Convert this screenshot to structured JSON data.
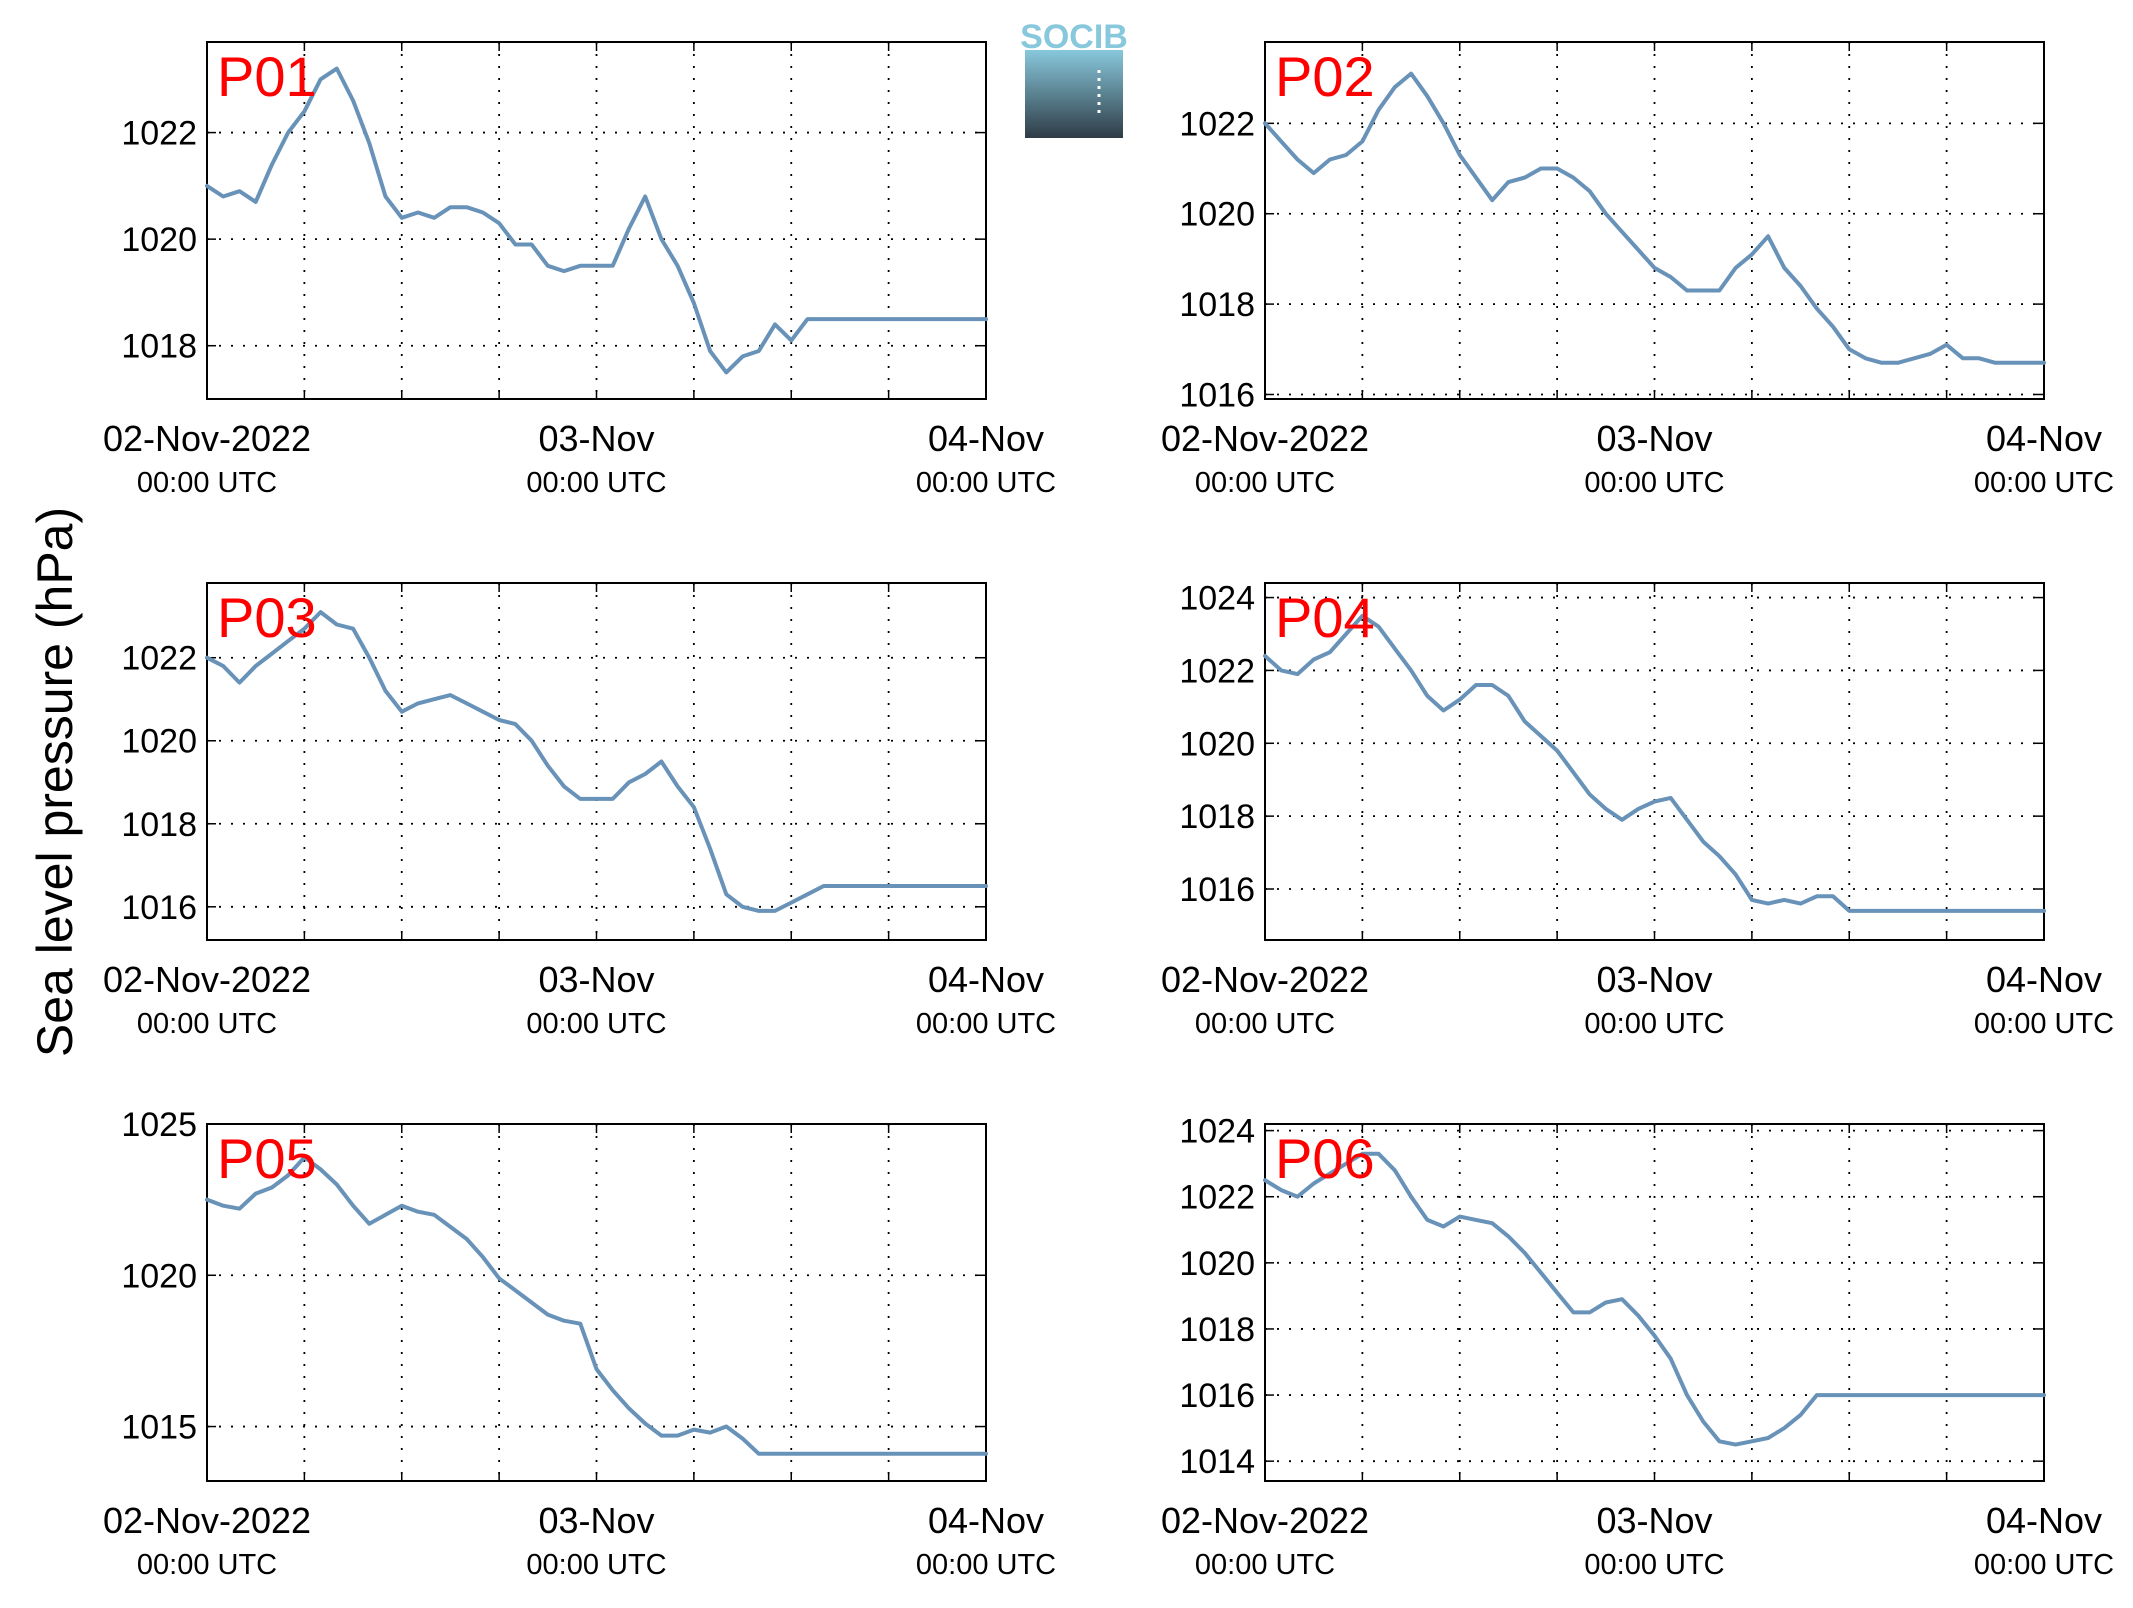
{
  "figure": {
    "ylabel": "Sea level pressure (hPa)",
    "logo_text": "SOCIB"
  },
  "style": {
    "line_color": "#6892b8",
    "panel_label_color": "#ff0000",
    "grid_color": "#000000",
    "logo_top_color": "#88c8dc",
    "logo_bottom_color": "#2e3c46"
  },
  "chart_data": [
    {
      "type": "line",
      "panel_label": "P01",
      "x_ticks": [
        {
          "x": 0,
          "date": "02-Nov-2022",
          "time": "00:00 UTC"
        },
        {
          "x": 24,
          "date": "03-Nov",
          "time": "00:00 UTC"
        },
        {
          "x": 48,
          "date": "04-Nov",
          "time": "00:00 UTC"
        }
      ],
      "xlim": [
        0,
        48
      ],
      "ylim": [
        1017,
        1023.7
      ],
      "yticks": [
        1018,
        1020,
        1022
      ],
      "x": [
        0,
        1,
        2,
        3,
        4,
        5,
        6,
        7,
        8,
        9,
        10,
        11,
        12,
        13,
        14,
        15,
        16,
        17,
        18,
        19,
        20,
        21,
        22,
        23,
        24,
        25,
        26,
        27,
        28,
        29,
        30,
        31,
        32,
        33,
        34,
        35,
        36,
        37,
        38,
        39,
        40,
        41,
        42,
        43,
        44,
        45,
        46,
        47,
        48
      ],
      "y": [
        1021.0,
        1020.8,
        1020.9,
        1020.7,
        1021.4,
        1022.0,
        1022.4,
        1023.0,
        1023.2,
        1022.6,
        1021.8,
        1020.8,
        1020.4,
        1020.5,
        1020.4,
        1020.6,
        1020.6,
        1020.5,
        1020.3,
        1019.9,
        1019.9,
        1019.5,
        1019.4,
        1019.5,
        1019.5,
        1019.5,
        1020.2,
        1020.8,
        1020.0,
        1019.5,
        1018.8,
        1017.9,
        1017.5,
        1017.8,
        1017.9,
        1018.4,
        1018.1,
        1018.5,
        1018.5,
        1018.5,
        1018.5,
        1018.5,
        1018.5,
        1018.5,
        1018.5,
        1018.5,
        1018.5,
        1018.5,
        1018.5
      ]
    },
    {
      "type": "line",
      "panel_label": "P02",
      "x_ticks": [
        {
          "x": 0,
          "date": "02-Nov-2022",
          "time": "00:00 UTC"
        },
        {
          "x": 24,
          "date": "03-Nov",
          "time": "00:00 UTC"
        },
        {
          "x": 48,
          "date": "04-Nov",
          "time": "00:00 UTC"
        }
      ],
      "xlim": [
        0,
        48
      ],
      "ylim": [
        1015.9,
        1023.8
      ],
      "yticks": [
        1016,
        1018,
        1020,
        1022
      ],
      "x": [
        0,
        1,
        2,
        3,
        4,
        5,
        6,
        7,
        8,
        9,
        10,
        11,
        12,
        13,
        14,
        15,
        16,
        17,
        18,
        19,
        20,
        21,
        22,
        23,
        24,
        25,
        26,
        27,
        28,
        29,
        30,
        31,
        32,
        33,
        34,
        35,
        36,
        37,
        38,
        39,
        40,
        41,
        42,
        43,
        44,
        45,
        46,
        47,
        48
      ],
      "y": [
        1022.0,
        1021.6,
        1021.2,
        1020.9,
        1021.2,
        1021.3,
        1021.6,
        1022.3,
        1022.8,
        1023.1,
        1022.6,
        1022.0,
        1021.3,
        1020.8,
        1020.3,
        1020.7,
        1020.8,
        1021.0,
        1021.0,
        1020.8,
        1020.5,
        1020.0,
        1019.6,
        1019.2,
        1018.8,
        1018.6,
        1018.3,
        1018.3,
        1018.3,
        1018.8,
        1019.1,
        1019.5,
        1018.8,
        1018.4,
        1017.9,
        1017.5,
        1017.0,
        1016.8,
        1016.7,
        1016.7,
        1016.8,
        1016.9,
        1017.1,
        1016.8,
        1016.8,
        1016.7,
        1016.7,
        1016.7,
        1016.7
      ]
    },
    {
      "type": "line",
      "panel_label": "P03",
      "x_ticks": [
        {
          "x": 0,
          "date": "02-Nov-2022",
          "time": "00:00 UTC"
        },
        {
          "x": 24,
          "date": "03-Nov",
          "time": "00:00 UTC"
        },
        {
          "x": 48,
          "date": "04-Nov",
          "time": "00:00 UTC"
        }
      ],
      "xlim": [
        0,
        48
      ],
      "ylim": [
        1015.2,
        1023.8
      ],
      "yticks": [
        1016,
        1018,
        1020,
        1022
      ],
      "x": [
        0,
        1,
        2,
        3,
        4,
        5,
        6,
        7,
        8,
        9,
        10,
        11,
        12,
        13,
        14,
        15,
        16,
        17,
        18,
        19,
        20,
        21,
        22,
        23,
        24,
        25,
        26,
        27,
        28,
        29,
        30,
        31,
        32,
        33,
        34,
        35,
        36,
        37,
        38,
        39,
        40,
        41,
        42,
        43,
        44,
        45,
        46,
        47,
        48
      ],
      "y": [
        1022.0,
        1021.8,
        1021.4,
        1021.8,
        1022.1,
        1022.4,
        1022.7,
        1023.1,
        1022.8,
        1022.7,
        1022.0,
        1021.2,
        1020.7,
        1020.9,
        1021.0,
        1021.1,
        1020.9,
        1020.7,
        1020.5,
        1020.4,
        1020.0,
        1019.4,
        1018.9,
        1018.6,
        1018.6,
        1018.6,
        1019.0,
        1019.2,
        1019.5,
        1018.9,
        1018.4,
        1017.4,
        1016.3,
        1016.0,
        1015.9,
        1015.9,
        1016.1,
        1016.3,
        1016.5,
        1016.5,
        1016.5,
        1016.5,
        1016.5,
        1016.5,
        1016.5,
        1016.5,
        1016.5,
        1016.5,
        1016.5
      ]
    },
    {
      "type": "line",
      "panel_label": "P04",
      "x_ticks": [
        {
          "x": 0,
          "date": "02-Nov-2022",
          "time": "00:00 UTC"
        },
        {
          "x": 24,
          "date": "03-Nov",
          "time": "00:00 UTC"
        },
        {
          "x": 48,
          "date": "04-Nov",
          "time": "00:00 UTC"
        }
      ],
      "xlim": [
        0,
        48
      ],
      "ylim": [
        1014.6,
        1024.4
      ],
      "yticks": [
        1016,
        1018,
        1020,
        1022,
        1024
      ],
      "x": [
        0,
        1,
        2,
        3,
        4,
        5,
        6,
        7,
        8,
        9,
        10,
        11,
        12,
        13,
        14,
        15,
        16,
        17,
        18,
        19,
        20,
        21,
        22,
        23,
        24,
        25,
        26,
        27,
        28,
        29,
        30,
        31,
        32,
        33,
        34,
        35,
        36,
        37,
        38,
        39,
        40,
        41,
        42,
        43,
        44,
        45,
        46,
        47,
        48
      ],
      "y": [
        1022.4,
        1022.0,
        1021.9,
        1022.3,
        1022.5,
        1023.0,
        1023.5,
        1023.2,
        1022.6,
        1022.0,
        1021.3,
        1020.9,
        1021.2,
        1021.6,
        1021.6,
        1021.3,
        1020.6,
        1020.2,
        1019.8,
        1019.2,
        1018.6,
        1018.2,
        1017.9,
        1018.2,
        1018.4,
        1018.5,
        1017.9,
        1017.3,
        1016.9,
        1016.4,
        1015.7,
        1015.6,
        1015.7,
        1015.6,
        1015.8,
        1015.8,
        1015.4,
        1015.4,
        1015.4,
        1015.4,
        1015.4,
        1015.4,
        1015.4,
        1015.4,
        1015.4,
        1015.4,
        1015.4,
        1015.4,
        1015.4
      ]
    },
    {
      "type": "line",
      "panel_label": "P05",
      "x_ticks": [
        {
          "x": 0,
          "date": "02-Nov-2022",
          "time": "00:00 UTC"
        },
        {
          "x": 24,
          "date": "03-Nov",
          "time": "00:00 UTC"
        },
        {
          "x": 48,
          "date": "04-Nov",
          "time": "00:00 UTC"
        }
      ],
      "xlim": [
        0,
        48
      ],
      "ylim": [
        1013.2,
        1025
      ],
      "yticks": [
        1015,
        1020,
        1025
      ],
      "x": [
        0,
        1,
        2,
        3,
        4,
        5,
        6,
        7,
        8,
        9,
        10,
        11,
        12,
        13,
        14,
        15,
        16,
        17,
        18,
        19,
        20,
        21,
        22,
        23,
        24,
        25,
        26,
        27,
        28,
        29,
        30,
        31,
        32,
        33,
        34,
        35,
        36,
        37,
        38,
        39,
        40,
        41,
        42,
        43,
        44,
        45,
        46,
        47,
        48
      ],
      "y": [
        1022.5,
        1022.3,
        1022.2,
        1022.7,
        1022.9,
        1023.3,
        1023.9,
        1023.5,
        1023.0,
        1022.3,
        1021.7,
        1022.0,
        1022.3,
        1022.1,
        1022.0,
        1021.6,
        1021.2,
        1020.6,
        1019.9,
        1019.5,
        1019.1,
        1018.7,
        1018.5,
        1018.4,
        1016.9,
        1016.2,
        1015.6,
        1015.1,
        1014.7,
        1014.7,
        1014.9,
        1014.8,
        1015.0,
        1014.6,
        1014.1,
        1014.1,
        1014.1,
        1014.1,
        1014.1,
        1014.1,
        1014.1,
        1014.1,
        1014.1,
        1014.1,
        1014.1,
        1014.1,
        1014.1,
        1014.1,
        1014.1
      ]
    },
    {
      "type": "line",
      "panel_label": "P06",
      "x_ticks": [
        {
          "x": 0,
          "date": "02-Nov-2022",
          "time": "00:00 UTC"
        },
        {
          "x": 24,
          "date": "03-Nov",
          "time": "00:00 UTC"
        },
        {
          "x": 48,
          "date": "04-Nov",
          "time": "00:00 UTC"
        }
      ],
      "xlim": [
        0,
        48
      ],
      "ylim": [
        1013.4,
        1024.2
      ],
      "yticks": [
        1014,
        1016,
        1018,
        1020,
        1022,
        1024
      ],
      "x": [
        0,
        1,
        2,
        3,
        4,
        5,
        6,
        7,
        8,
        9,
        10,
        11,
        12,
        13,
        14,
        15,
        16,
        17,
        18,
        19,
        20,
        21,
        22,
        23,
        24,
        25,
        26,
        27,
        28,
        29,
        30,
        31,
        32,
        33,
        34,
        35,
        36,
        37,
        38,
        39,
        40,
        41,
        42,
        43,
        44,
        45,
        46,
        47,
        48
      ],
      "y": [
        1022.5,
        1022.2,
        1022.0,
        1022.4,
        1022.7,
        1023.0,
        1023.3,
        1023.3,
        1022.8,
        1022.0,
        1021.3,
        1021.1,
        1021.4,
        1021.3,
        1021.2,
        1020.8,
        1020.3,
        1019.7,
        1019.1,
        1018.5,
        1018.5,
        1018.8,
        1018.9,
        1018.4,
        1017.8,
        1017.1,
        1016.0,
        1015.2,
        1014.6,
        1014.5,
        1014.6,
        1014.7,
        1015.0,
        1015.4,
        1016.0,
        1016.0,
        1016.0,
        1016.0,
        1016.0,
        1016.0,
        1016.0,
        1016.0,
        1016.0,
        1016.0,
        1016.0,
        1016.0,
        1016.0,
        1016.0,
        1016.0
      ]
    }
  ]
}
